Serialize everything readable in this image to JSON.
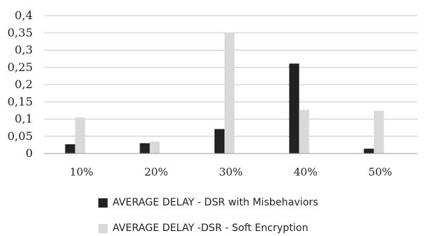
{
  "chart_data": {
    "type": "bar",
    "title": "",
    "xlabel": "",
    "ylabel": "",
    "categories": [
      "10%",
      "20%",
      "30%",
      "40%",
      "50%"
    ],
    "series": [
      {
        "name": "AVERAGE DELAY - DSR with Misbehaviors",
        "values": [
          0.027,
          0.03,
          0.071,
          0.261,
          0.014
        ],
        "color": "#222222"
      },
      {
        "name": "AVERAGE DELAY -DSR - Soft Encryption",
        "values": [
          0.105,
          0.035,
          0.351,
          0.127,
          0.124
        ],
        "color": "#d9d9d9"
      }
    ],
    "ylim": [
      0,
      0.4
    ],
    "yticks": [
      "0",
      "0,05",
      "0,1",
      "0,15",
      "0,2",
      "0,25",
      "0,3",
      "0,35",
      "0,4"
    ],
    "grid": true,
    "legend_position": "bottom"
  }
}
